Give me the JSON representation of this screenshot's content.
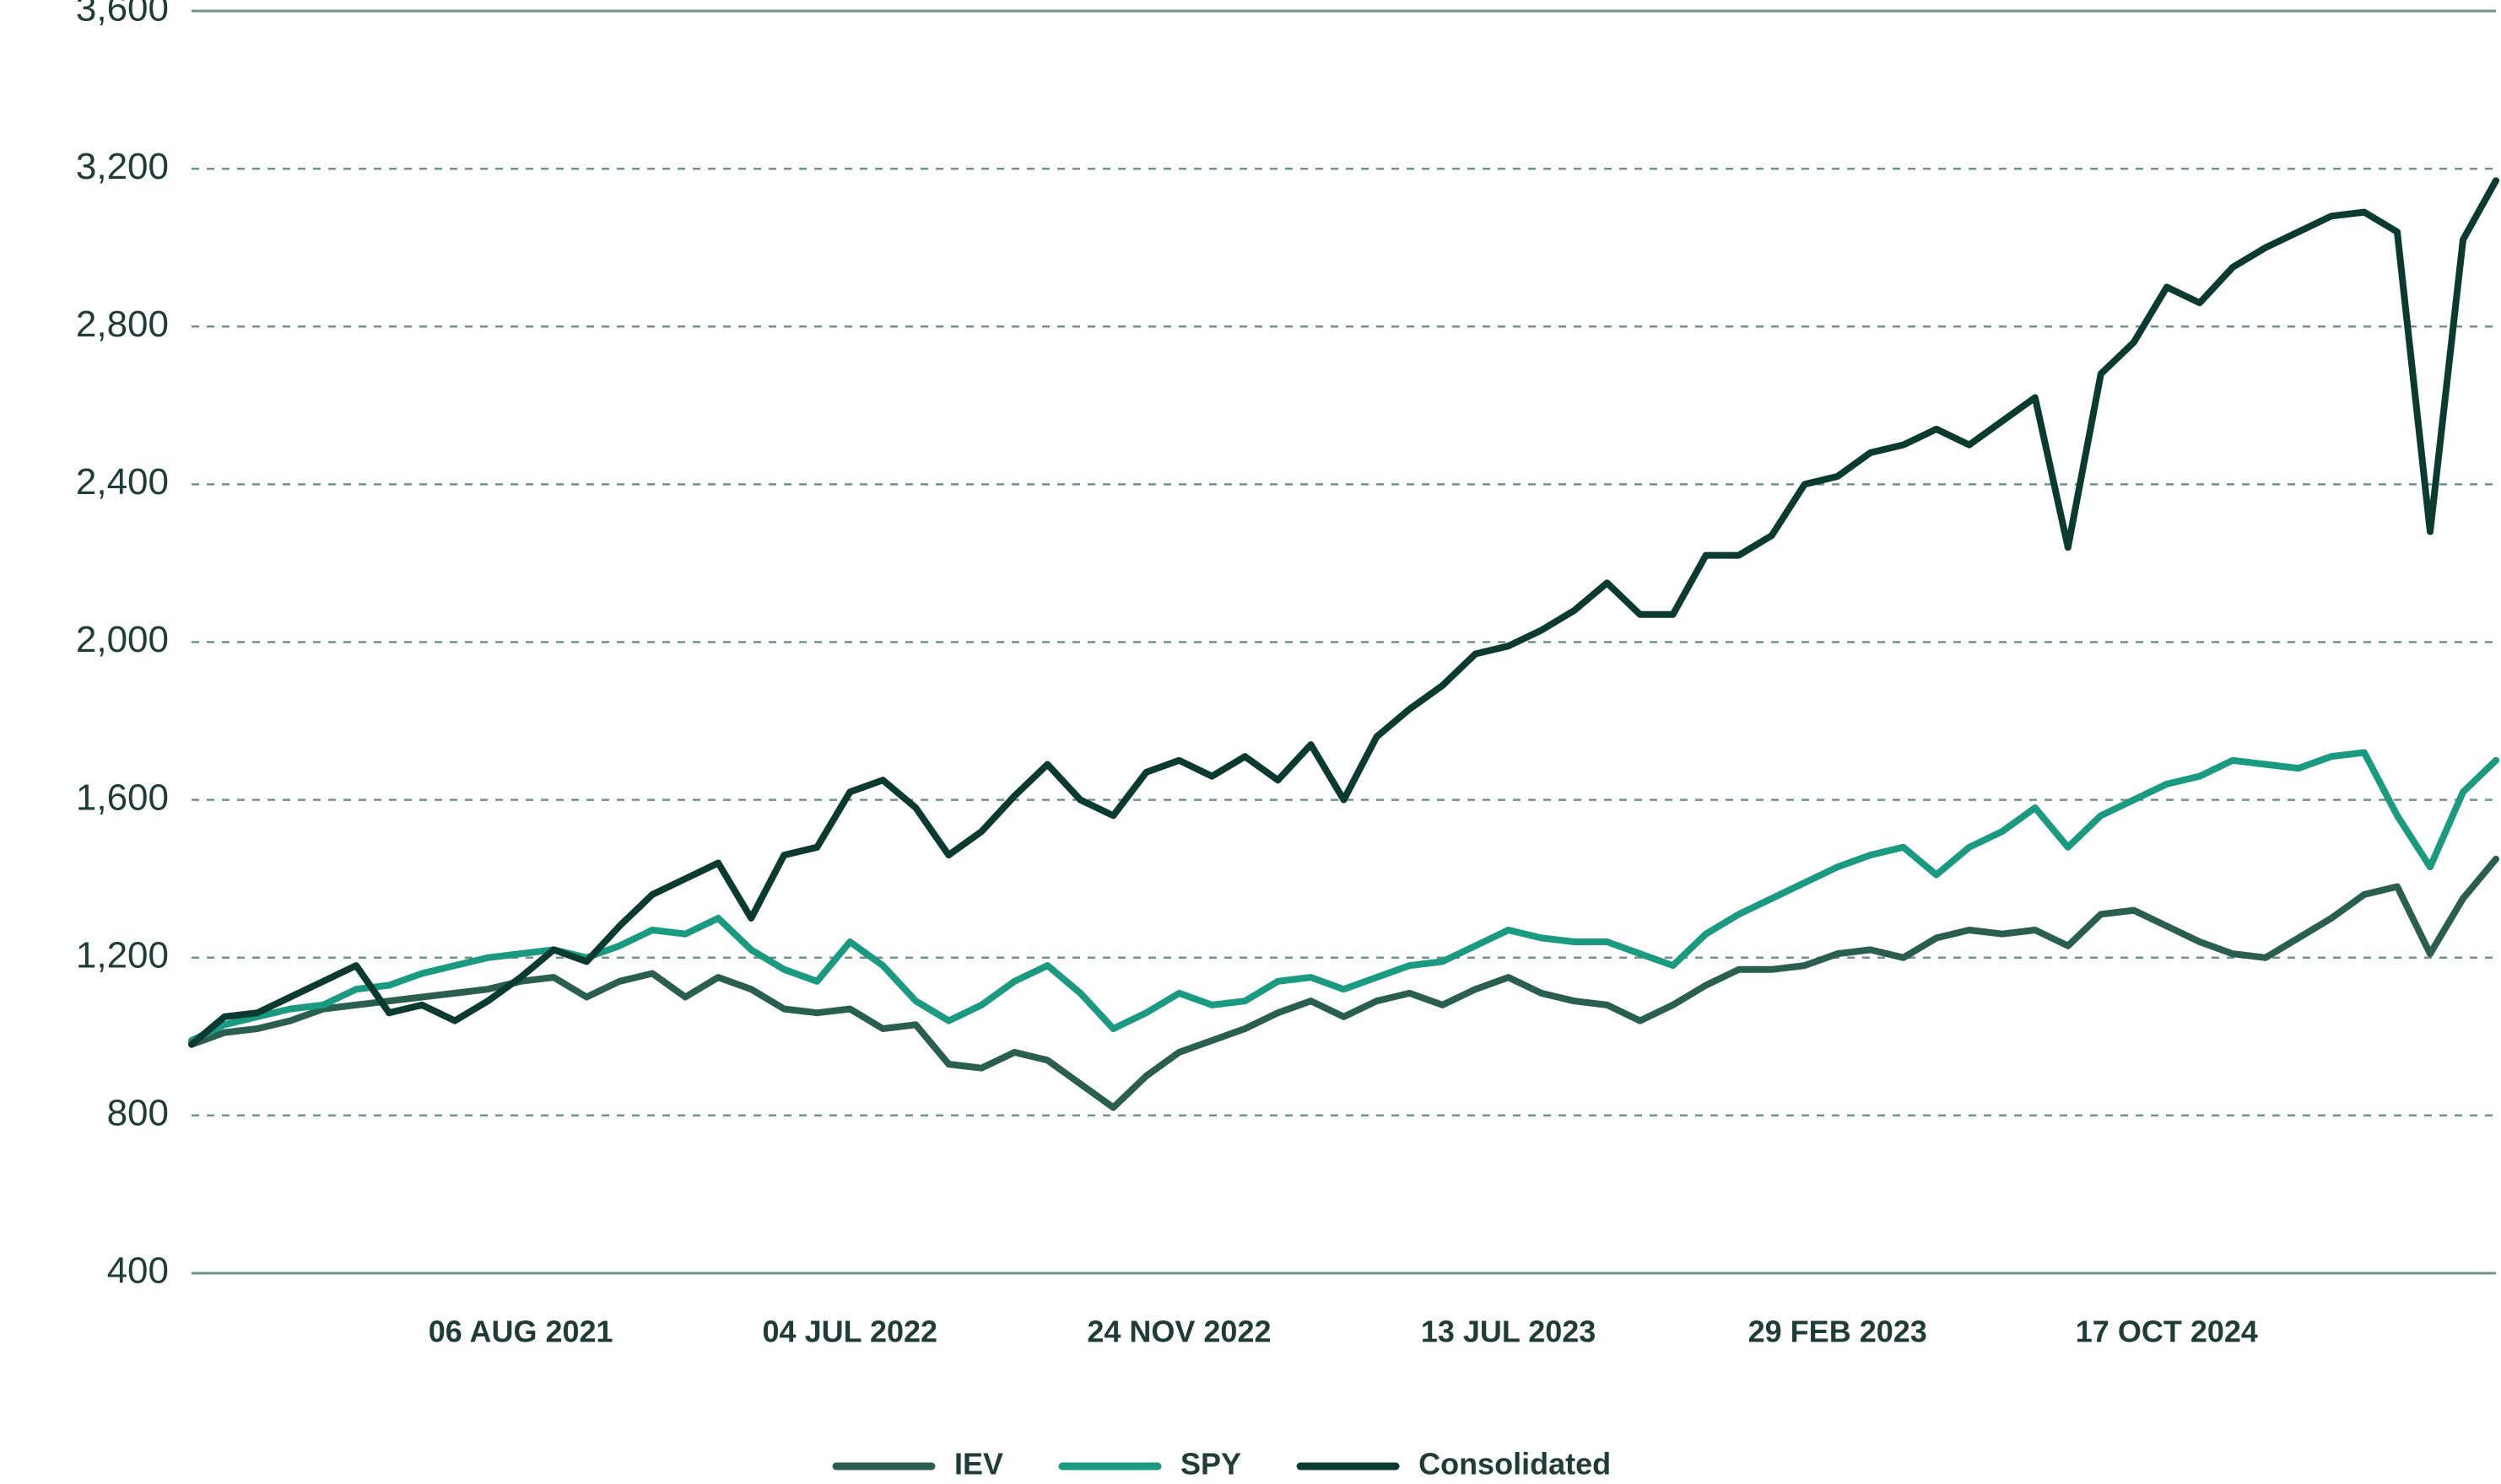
{
  "chart_data": {
    "type": "line",
    "categories": [
      null,
      null,
      null,
      null,
      null,
      null,
      null,
      null,
      null,
      null,
      "06 AUG 2021",
      null,
      null,
      null,
      null,
      null,
      null,
      null,
      null,
      null,
      "04 JUL 2022",
      null,
      null,
      null,
      null,
      null,
      null,
      null,
      null,
      null,
      "24 NOV 2022",
      null,
      null,
      null,
      null,
      null,
      null,
      null,
      null,
      null,
      "13 JUL 2023",
      null,
      null,
      null,
      null,
      null,
      null,
      null,
      null,
      null,
      "29 FEB 2023",
      null,
      null,
      null,
      null,
      null,
      null,
      null,
      null,
      null,
      "17 OCT 2024",
      null,
      null,
      null,
      null,
      null,
      null,
      null,
      null,
      null,
      null
    ],
    "series": [
      {
        "name": "IEV",
        "color": "#2a5e4f",
        "values": [
          980,
          1010,
          1020,
          1040,
          1070,
          1080,
          1090,
          1100,
          1110,
          1120,
          1140,
          1150,
          1100,
          1140,
          1160,
          1100,
          1150,
          1120,
          1070,
          1060,
          1070,
          1020,
          1030,
          930,
          920,
          960,
          940,
          880,
          820,
          900,
          960,
          990,
          1020,
          1060,
          1090,
          1050,
          1090,
          1110,
          1080,
          1120,
          1150,
          1110,
          1090,
          1080,
          1040,
          1080,
          1130,
          1170,
          1170,
          1180,
          1210,
          1220,
          1200,
          1250,
          1270,
          1260,
          1270,
          1230,
          1310,
          1320,
          1280,
          1240,
          1210,
          1200,
          1250,
          1300,
          1360,
          1380,
          1210,
          1350,
          1450
        ]
      },
      {
        "name": "SPY",
        "color": "#1a9a80",
        "values": [
          990,
          1030,
          1050,
          1070,
          1080,
          1120,
          1130,
          1160,
          1180,
          1200,
          1210,
          1220,
          1200,
          1230,
          1270,
          1260,
          1300,
          1220,
          1170,
          1140,
          1240,
          1180,
          1090,
          1040,
          1080,
          1140,
          1180,
          1110,
          1020,
          1060,
          1110,
          1080,
          1090,
          1140,
          1150,
          1120,
          1150,
          1180,
          1190,
          1230,
          1270,
          1250,
          1240,
          1240,
          1210,
          1180,
          1260,
          1310,
          1350,
          1390,
          1430,
          1460,
          1480,
          1410,
          1480,
          1520,
          1580,
          1480,
          1560,
          1600,
          1640,
          1660,
          1700,
          1690,
          1680,
          1710,
          1720,
          1560,
          1430,
          1620,
          1700
        ]
      },
      {
        "name": "Consolidated",
        "color": "#0b3a30",
        "values": [
          980,
          1050,
          1060,
          1100,
          1140,
          1180,
          1060,
          1080,
          1040,
          1090,
          1150,
          1220,
          1190,
          1280,
          1360,
          1400,
          1440,
          1300,
          1460,
          1480,
          1620,
          1650,
          1580,
          1460,
          1520,
          1610,
          1690,
          1600,
          1560,
          1670,
          1700,
          1660,
          1710,
          1650,
          1740,
          1600,
          1760,
          1830,
          1890,
          1970,
          1990,
          2030,
          2080,
          2150,
          2070,
          2070,
          2220,
          2220,
          2270,
          2400,
          2420,
          2480,
          2500,
          2540,
          2500,
          2560,
          2620,
          2240,
          2680,
          2760,
          2900,
          2860,
          2950,
          3000,
          3040,
          3080,
          3090,
          3040,
          2280,
          3020,
          3170
        ]
      }
    ],
    "ylim": [
      400,
      3600
    ],
    "yticks": [
      400,
      {
        "value": 800,
        "label": "800"
      },
      {
        "value": 1200,
        "label": "1,200"
      },
      {
        "value": 1600,
        "label": "1,600"
      },
      {
        "value": 2000,
        "label": "2,000"
      },
      {
        "value": 2400,
        "label": "2,400"
      },
      {
        "value": 2800,
        "label": "2,800"
      },
      {
        "value": 3200,
        "label": "3,200"
      },
      {
        "value": 3600,
        "label": "3,600"
      }
    ],
    "grid": true,
    "legend": "bottom"
  }
}
